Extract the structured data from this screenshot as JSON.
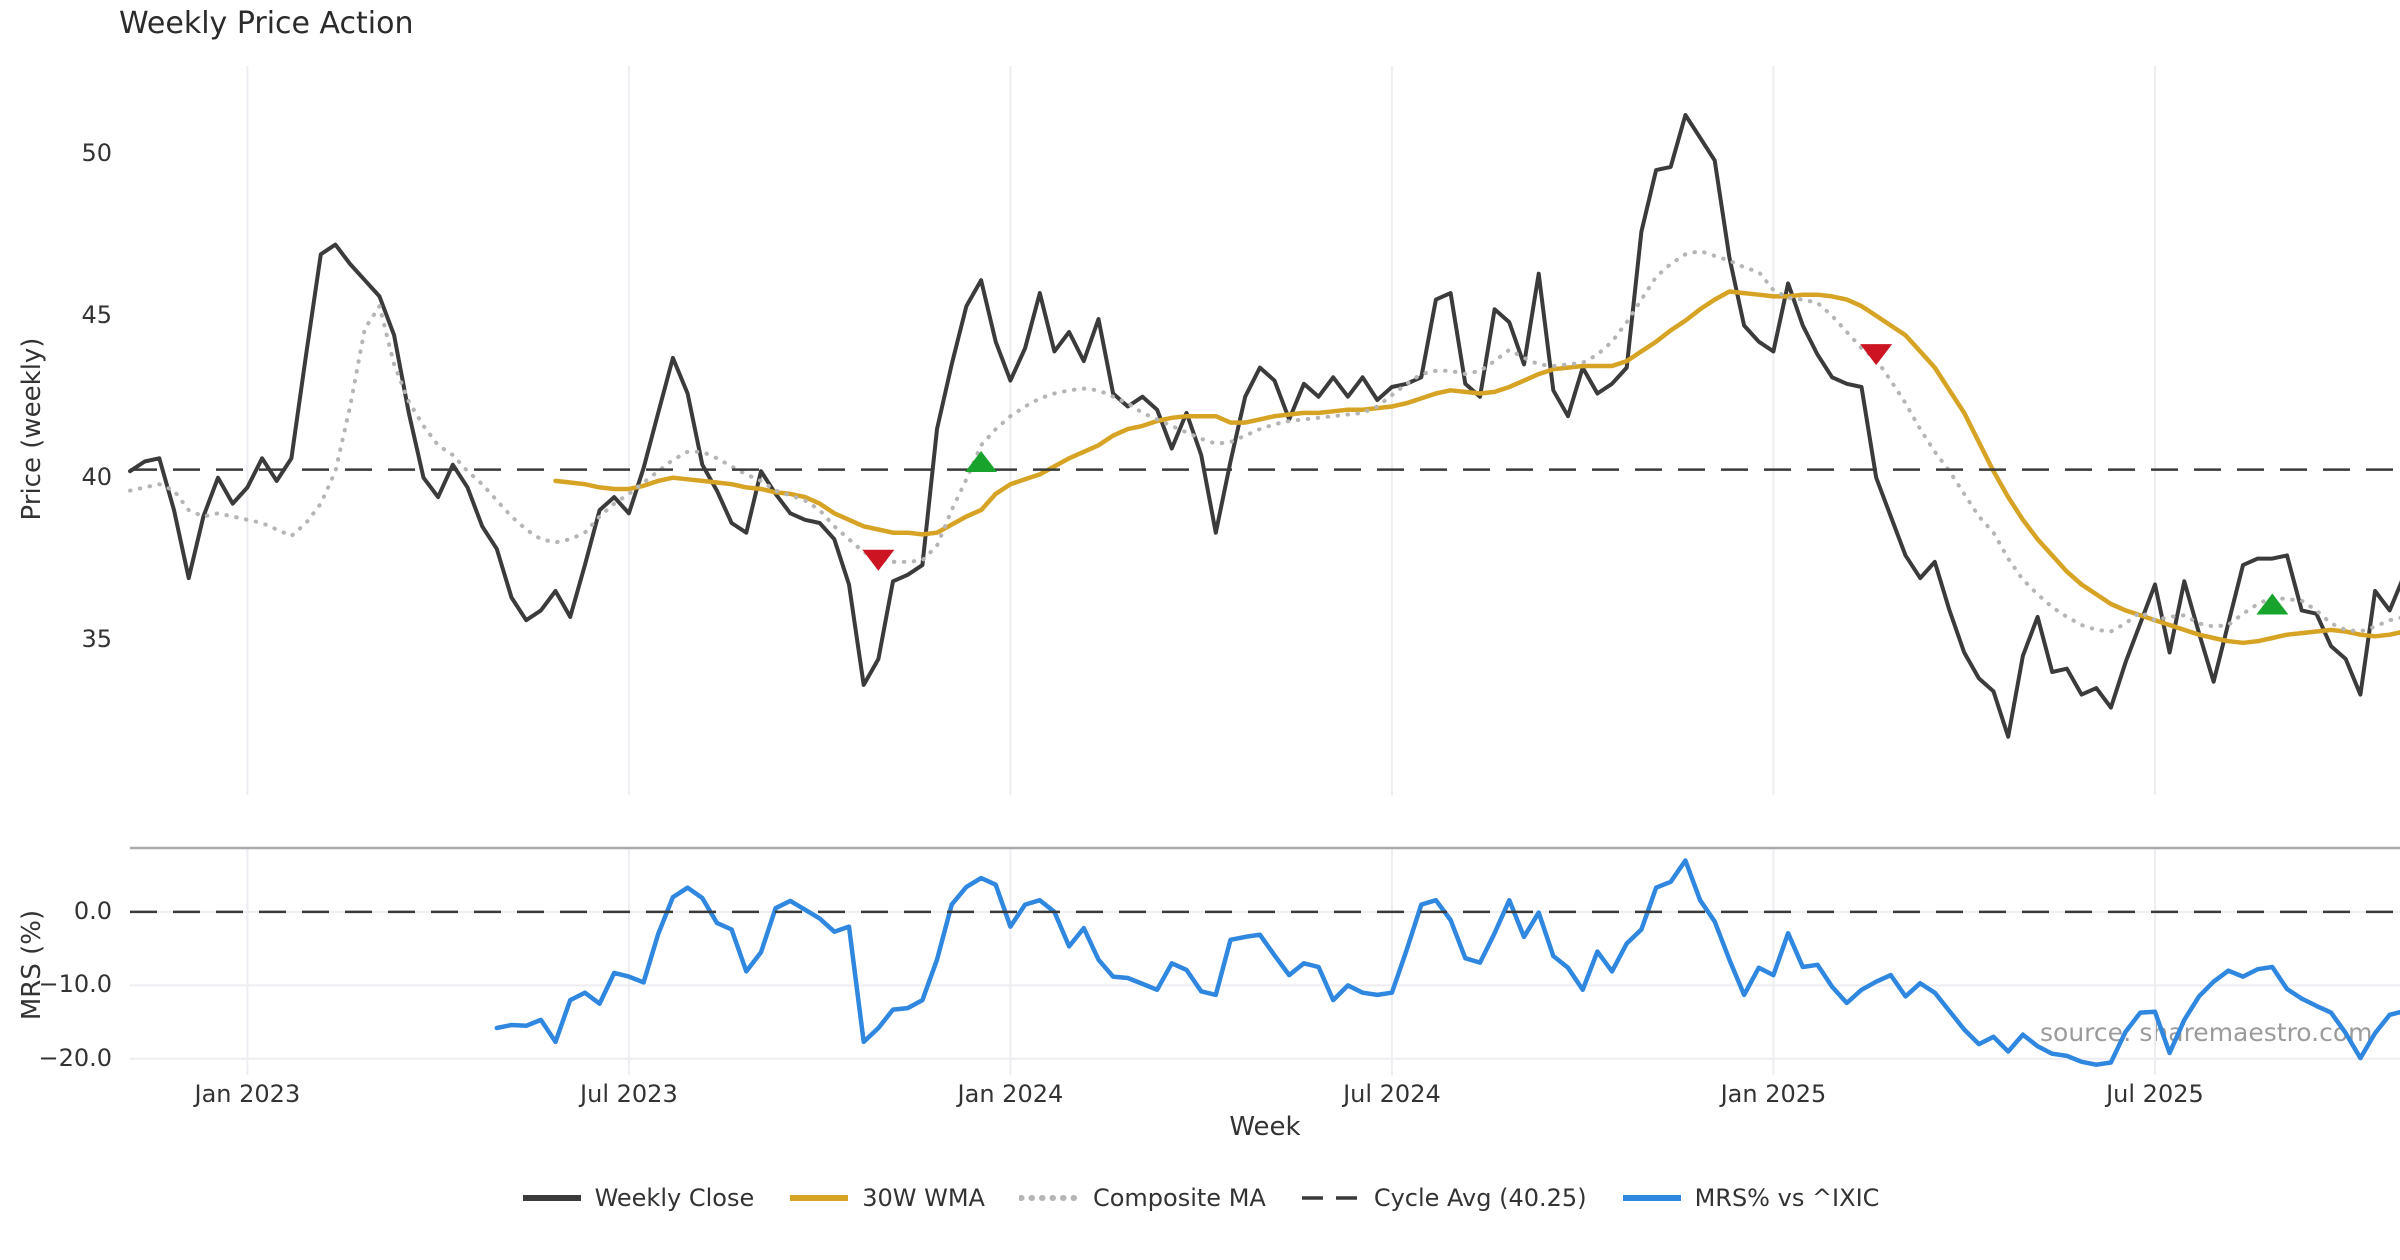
{
  "title": "Weekly Price Action",
  "watermark": "source: sharemaestro.com",
  "colors": {
    "weekly_close": "#3b3b3b",
    "wma_30w": "#d7a325",
    "composite_ma": "#b5b5b5",
    "cycle_avg": "#3a3a3a",
    "mrs": "#2f87e0",
    "buy_marker": "#18a42c",
    "sell_marker": "#cd1422",
    "grid": "#ededf2",
    "spine": "#a9a9b0",
    "text": "#333333",
    "title_text": "#2b2b2b",
    "watermark_text": "#9b9b9b"
  },
  "chart_data": {
    "type": "line",
    "title": "Weekly Price Action",
    "xlabel": "Week",
    "grid": "vertical-major",
    "legend_position": "bottom-center",
    "x_axis": {
      "unit": "weeks-from-start",
      "xlim_weeks": [
        0,
        154.7
      ],
      "ticks": [
        {
          "label": "Jan 2023",
          "week": 8
        },
        {
          "label": "Jul 2023",
          "week": 34
        },
        {
          "label": "Jan 2024",
          "week": 60
        },
        {
          "label": "Jul 2024",
          "week": 86
        },
        {
          "label": "Jan 2025",
          "week": 112
        },
        {
          "label": "Jul 2025",
          "week": 138
        }
      ]
    },
    "panels": [
      {
        "name": "price",
        "ylabel": "Price (weekly)",
        "ylim": [
          30.2,
          52.9
        ],
        "yticks": [
          {
            "label": "50",
            "value": 50
          },
          {
            "label": "45",
            "value": 45
          },
          {
            "label": "40",
            "value": 40
          },
          {
            "label": "35",
            "value": 35
          }
        ],
        "hgrid": false
      },
      {
        "name": "mrs",
        "ylabel": "MRS (%)",
        "ylim": [
          -22.2,
          8.7
        ],
        "yticks": [
          {
            "label": "0.0",
            "value": 0
          },
          {
            "label": "−10.0",
            "value": -10
          },
          {
            "label": "−20.0",
            "value": -20
          }
        ],
        "hgrid": true
      }
    ],
    "series": [
      {
        "name": "Weekly Close",
        "panel": "price",
        "color": "#3b3b3b",
        "style": "solid",
        "width": 4,
        "start_week": 0,
        "values": [
          40.2,
          40.5,
          40.6,
          39.0,
          36.9,
          38.8,
          40.0,
          39.2,
          39.7,
          40.6,
          39.9,
          40.6,
          43.8,
          46.9,
          47.2,
          46.6,
          46.1,
          45.6,
          44.4,
          42.0,
          40.0,
          39.4,
          40.4,
          39.7,
          38.5,
          37.8,
          36.3,
          35.6,
          35.9,
          36.5,
          35.7,
          37.3,
          39.0,
          39.4,
          38.9,
          40.3,
          42.0,
          43.7,
          42.6,
          40.4,
          39.6,
          38.6,
          38.3,
          40.2,
          39.5,
          38.9,
          38.7,
          38.6,
          38.1,
          36.7,
          33.6,
          34.4,
          36.8,
          37.0,
          37.3,
          41.5,
          43.5,
          45.3,
          46.1,
          44.2,
          43.0,
          44.0,
          45.7,
          43.9,
          44.5,
          43.6,
          44.9,
          42.6,
          42.2,
          42.5,
          42.1,
          40.9,
          42.0,
          40.7,
          38.3,
          40.5,
          42.5,
          43.4,
          43.0,
          41.8,
          42.9,
          42.5,
          43.1,
          42.5,
          43.1,
          42.4,
          42.8,
          42.9,
          43.1,
          45.5,
          45.7,
          42.9,
          42.5,
          45.2,
          44.8,
          43.5,
          46.3,
          42.7,
          41.9,
          43.4,
          42.6,
          42.9,
          43.4,
          47.6,
          49.5,
          49.6,
          51.2,
          50.5,
          49.8,
          46.8,
          44.7,
          44.2,
          43.9,
          46.0,
          44.7,
          43.8,
          43.1,
          42.9,
          42.8,
          40.0,
          38.8,
          37.6,
          36.9,
          37.4,
          35.9,
          34.6,
          33.8,
          33.4,
          32.0,
          34.5,
          35.7,
          34.0,
          34.1,
          33.3,
          33.5,
          32.9,
          34.3,
          35.5,
          36.7,
          34.6,
          36.8,
          35.2,
          33.7,
          35.5,
          37.3,
          37.5,
          37.5,
          37.6,
          35.9,
          35.8,
          34.8,
          34.4,
          33.3,
          36.5,
          35.9,
          37.0
        ]
      },
      {
        "name": "30W WMA",
        "panel": "price",
        "color": "#d7a325",
        "style": "solid",
        "width": 4.5,
        "start_week": 29,
        "values": [
          39.9,
          39.85,
          39.8,
          39.7,
          39.65,
          39.65,
          39.75,
          39.9,
          40.0,
          39.95,
          39.9,
          39.85,
          39.8,
          39.7,
          39.65,
          39.55,
          39.5,
          39.4,
          39.2,
          38.9,
          38.7,
          38.5,
          38.4,
          38.3,
          38.3,
          38.25,
          38.3,
          38.55,
          38.8,
          39.0,
          39.5,
          39.8,
          39.95,
          40.1,
          40.35,
          40.6,
          40.8,
          41.0,
          41.3,
          41.5,
          41.6,
          41.75,
          41.85,
          41.9,
          41.9,
          41.9,
          41.7,
          41.7,
          41.8,
          41.9,
          41.95,
          42.0,
          42.0,
          42.05,
          42.1,
          42.1,
          42.15,
          42.2,
          42.3,
          42.45,
          42.6,
          42.7,
          42.65,
          42.6,
          42.65,
          42.8,
          43.0,
          43.2,
          43.35,
          43.4,
          43.45,
          43.45,
          43.45,
          43.6,
          43.9,
          44.2,
          44.55,
          44.85,
          45.2,
          45.5,
          45.75,
          45.7,
          45.65,
          45.6,
          45.6,
          45.65,
          45.65,
          45.6,
          45.5,
          45.3,
          45.0,
          44.7,
          44.4,
          43.9,
          43.4,
          42.7,
          42.0,
          41.1,
          40.2,
          39.4,
          38.7,
          38.1,
          37.6,
          37.1,
          36.7,
          36.4,
          36.1,
          35.9,
          35.75,
          35.6,
          35.45,
          35.3,
          35.15,
          35.05,
          34.95,
          34.9,
          34.95,
          35.05,
          35.15,
          35.2,
          35.25,
          35.3,
          35.25,
          35.15,
          35.1,
          35.15,
          35.25
        ]
      },
      {
        "name": "Composite MA",
        "panel": "price",
        "color": "#b5b5b5",
        "style": "dotted",
        "width": 4,
        "start_week": 0,
        "values": [
          39.6,
          39.7,
          39.8,
          39.6,
          39.0,
          38.8,
          38.9,
          38.8,
          38.7,
          38.6,
          38.4,
          38.2,
          38.6,
          39.2,
          40.2,
          42.2,
          44.6,
          45.3,
          43.5,
          42.35,
          41.6,
          41.0,
          40.7,
          40.2,
          39.8,
          39.3,
          38.8,
          38.4,
          38.1,
          38.0,
          38.1,
          38.3,
          38.8,
          39.2,
          39.5,
          39.85,
          40.2,
          40.55,
          40.8,
          40.8,
          40.6,
          40.35,
          40.1,
          39.9,
          39.6,
          39.45,
          39.3,
          39.0,
          38.5,
          38.1,
          37.7,
          37.5,
          37.4,
          37.4,
          37.45,
          37.9,
          39.0,
          39.95,
          41.0,
          41.5,
          41.9,
          42.2,
          42.45,
          42.6,
          42.7,
          42.75,
          42.7,
          42.5,
          42.3,
          42.0,
          41.8,
          41.6,
          41.4,
          41.2,
          41.05,
          41.1,
          41.3,
          41.5,
          41.65,
          41.75,
          41.8,
          41.85,
          41.9,
          41.95,
          42.0,
          42.2,
          42.55,
          42.9,
          43.2,
          43.3,
          43.3,
          43.2,
          43.3,
          43.6,
          43.95,
          43.7,
          43.5,
          43.45,
          43.5,
          43.55,
          43.8,
          44.2,
          44.8,
          45.5,
          46.2,
          46.6,
          46.9,
          47.0,
          46.85,
          46.7,
          46.5,
          46.35,
          45.8,
          45.55,
          45.5,
          45.4,
          45.0,
          44.5,
          44.0,
          43.65,
          43.0,
          42.3,
          41.5,
          40.8,
          40.2,
          39.5,
          38.8,
          38.3,
          37.5,
          36.85,
          36.4,
          36.0,
          35.7,
          35.45,
          35.3,
          35.25,
          35.5,
          35.85,
          35.6,
          35.7,
          35.75,
          35.5,
          35.4,
          35.45,
          35.8,
          36.1,
          36.3,
          36.25,
          36.2,
          35.9,
          35.5,
          35.3,
          35.25,
          35.4,
          35.6,
          35.7
        ]
      },
      {
        "name": "Cycle Avg (40.25)",
        "panel": "price",
        "color": "#3a3a3a",
        "style": "dashed",
        "width": 2.5,
        "ref_value": 40.25
      },
      {
        "name": "MRS% vs ^IXIC",
        "panel": "mrs",
        "color": "#2f87e0",
        "style": "solid",
        "width": 4.5,
        "start_week": 25,
        "values": [
          -15.8,
          -15.4,
          -15.5,
          -14.7,
          -17.7,
          -12.0,
          -11.0,
          -12.5,
          -8.3,
          -8.8,
          -9.6,
          -3.0,
          2.0,
          3.3,
          1.9,
          -1.5,
          -2.4,
          -8.1,
          -5.5,
          0.5,
          1.5,
          0.3,
          -0.9,
          -2.7,
          -2.0,
          -17.7,
          -15.8,
          -13.3,
          -13.1,
          -12.0,
          -6.5,
          1.0,
          3.4,
          4.6,
          3.7,
          -2.0,
          1.0,
          1.6,
          0.0,
          -4.7,
          -2.2,
          -6.5,
          -8.8,
          -9.0,
          -9.8,
          -10.6,
          -7.0,
          -7.9,
          -10.8,
          -11.3,
          -3.8,
          -3.4,
          -3.1,
          -5.9,
          -8.6,
          -7.0,
          -7.5,
          -12.0,
          -10.0,
          -11.0,
          -11.3,
          -11.0,
          -5.2,
          1.0,
          1.6,
          -1.1,
          -6.3,
          -6.9,
          -2.9,
          1.6,
          -3.4,
          -0.1,
          -6.0,
          -7.6,
          -10.6,
          -5.4,
          -8.1,
          -4.3,
          -2.4,
          3.3,
          4.1,
          7.0,
          1.6,
          -1.3,
          -6.5,
          -11.3,
          -7.6,
          -8.6,
          -2.9,
          -7.5,
          -7.2,
          -10.2,
          -12.4,
          -10.6,
          -9.5,
          -8.6,
          -11.5,
          -9.7,
          -11.0,
          -13.5,
          -16.0,
          -18.0,
          -17.0,
          -19.0,
          -16.7,
          -18.3,
          -19.3,
          -19.6,
          -20.4,
          -20.8,
          -20.5,
          -16.3,
          -13.7,
          -13.6,
          -19.2,
          -14.7,
          -11.5,
          -9.5,
          -8.0,
          -8.8,
          -7.8,
          -7.5,
          -10.5,
          -11.8,
          -12.8,
          -13.7,
          -16.5,
          -19.9,
          -16.5,
          -14.0,
          -13.5
        ]
      },
      {
        "name": "zero line",
        "panel": "mrs",
        "color": "#3a3a3a",
        "style": "dashed",
        "width": 2.5,
        "ref_value": 0
      }
    ],
    "markers": [
      {
        "kind": "sell",
        "shape": "triangle-down",
        "color": "#cd1422",
        "panel": "price",
        "points": [
          {
            "week": 51,
            "value": 37.45
          },
          {
            "week": 119,
            "value": 43.8
          }
        ]
      },
      {
        "kind": "buy",
        "shape": "triangle-up",
        "color": "#18a42c",
        "panel": "price",
        "points": [
          {
            "week": 58,
            "value": 40.5
          },
          {
            "week": 146,
            "value": 36.1
          }
        ]
      }
    ]
  },
  "legend": {
    "items": [
      {
        "label": "Weekly Close",
        "color": "#3b3b3b",
        "style": "solid"
      },
      {
        "label": "30W WMA",
        "color": "#d7a325",
        "style": "solid"
      },
      {
        "label": "Composite MA",
        "color": "#b5b5b5",
        "style": "dotted"
      },
      {
        "label": "Cycle Avg (40.25)",
        "color": "#3a3a3a",
        "style": "dashed"
      },
      {
        "label": "MRS% vs ^IXIC",
        "color": "#2f87e0",
        "style": "solid"
      }
    ]
  }
}
